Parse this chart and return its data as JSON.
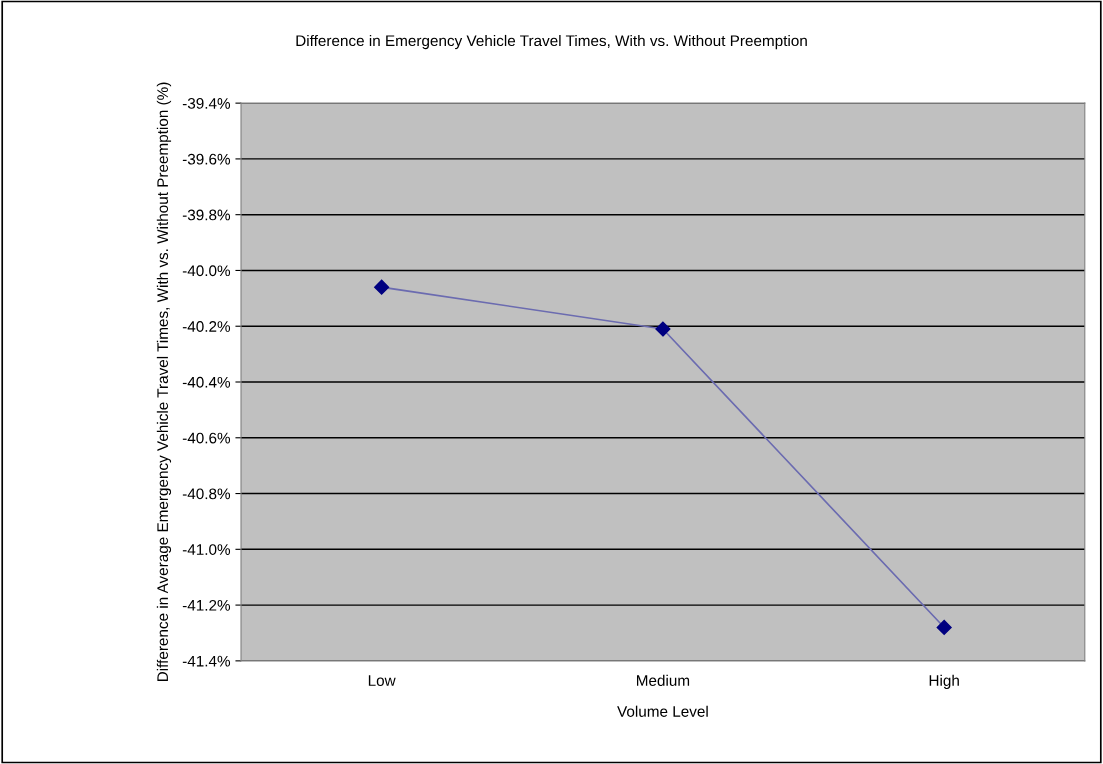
{
  "chart_data": {
    "type": "line",
    "title": "Difference in Emergency Vehicle Travel Times, With vs. Without Preemption",
    "xlabel": "Volume Level",
    "ylabel": "Difference in Average Emergency Vehicle Travel Times, With vs. Without Preemption (%)",
    "categories": [
      "Low",
      "Medium",
      "High"
    ],
    "series": [
      {
        "color": "#000080",
        "values": [
          -40.06,
          -40.21,
          -41.28
        ]
      }
    ],
    "ylim": [
      -41.4,
      -39.4
    ],
    "yticks": [
      {
        "value": -41.4,
        "label": "-41.4%"
      },
      {
        "value": -41.2,
        "label": "-41.2%"
      },
      {
        "value": -41.0,
        "label": "-41.0%"
      },
      {
        "value": -40.8,
        "label": "-40.8%"
      },
      {
        "value": -40.6,
        "label": "-40.6%"
      },
      {
        "value": -40.4,
        "label": "-40.4%"
      },
      {
        "value": -40.2,
        "label": "-40.2%"
      },
      {
        "value": -40.0,
        "label": "-40.0%"
      },
      {
        "value": -39.8,
        "label": "-39.8%"
      },
      {
        "value": -39.6,
        "label": "-39.6%"
      },
      {
        "value": -39.4,
        "label": "-39.4%"
      }
    ],
    "grid": "y",
    "marker": "diamond",
    "line_style": "solid",
    "legend": false
  }
}
